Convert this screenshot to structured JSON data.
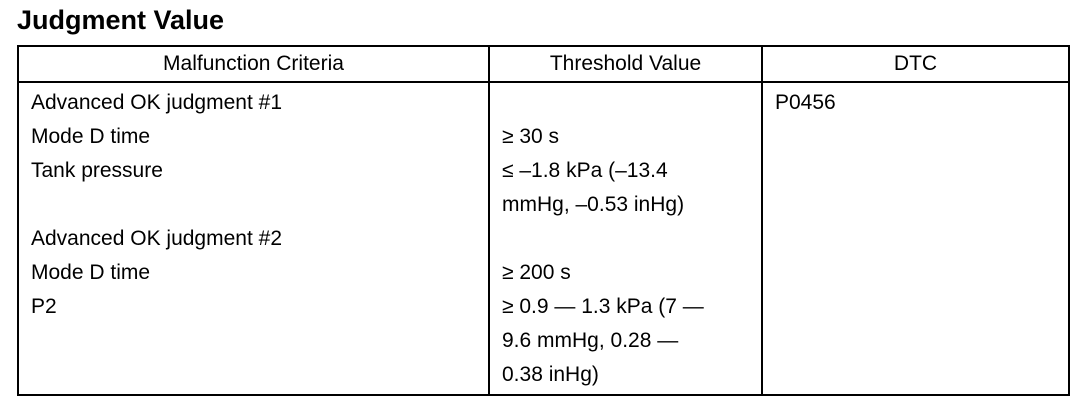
{
  "header": {
    "title": "Judgment Value"
  },
  "table": {
    "columns": [
      "Malfunction Criteria",
      "Threshold Value",
      "DTC"
    ],
    "dtc": "P0456",
    "rows": [
      {
        "criteria": "Advanced OK judgment #1",
        "threshold": []
      },
      {
        "criteria": "Mode D time",
        "threshold": [
          "≥ 30 s"
        ]
      },
      {
        "criteria": "Tank pressure",
        "threshold": [
          "≤ –1.8 kPa (–13.4",
          "mmHg, –0.53 inHg)"
        ]
      },
      {
        "criteria": "Advanced OK judgment #2",
        "threshold": []
      },
      {
        "criteria": "Mode D time",
        "threshold": [
          "≥ 200 s"
        ]
      },
      {
        "criteria": "P2",
        "threshold": [
          "≥ 0.9 — 1.3 kPa (7 —",
          "9.6 mmHg, 0.28 —",
          "0.38 inHg)"
        ]
      }
    ]
  }
}
